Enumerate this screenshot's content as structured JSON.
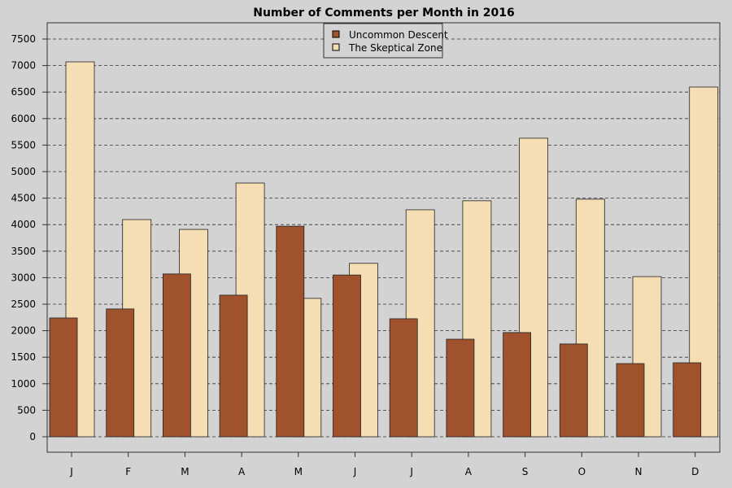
{
  "chart_data": {
    "type": "bar",
    "title": "Number of Comments per Month in 2016",
    "xlabel": "",
    "ylabel": "",
    "categories": [
      "J",
      "F",
      "M",
      "A",
      "M",
      "J",
      "J",
      "A",
      "S",
      "O",
      "N",
      "D"
    ],
    "series": [
      {
        "name": "Uncommon Descent",
        "color": "#a0522d",
        "values": [
          2240,
          2410,
          3070,
          2670,
          3970,
          3050,
          2225,
          1840,
          1965,
          1750,
          1380,
          1395
        ]
      },
      {
        "name": "The Skeptical Zone",
        "color": "#f5deb3",
        "values": [
          7070,
          4095,
          3910,
          4785,
          2610,
          3270,
          4280,
          4450,
          5630,
          4480,
          3020,
          6595
        ]
      }
    ],
    "ylim": [
      0,
      7500
    ],
    "yticks": [
      0,
      500,
      1000,
      1500,
      2000,
      2500,
      3000,
      3500,
      4000,
      4500,
      5000,
      5500,
      6000,
      6500,
      7000,
      7500
    ],
    "grid": "horizontal dashed",
    "legend_position": "top-center"
  }
}
